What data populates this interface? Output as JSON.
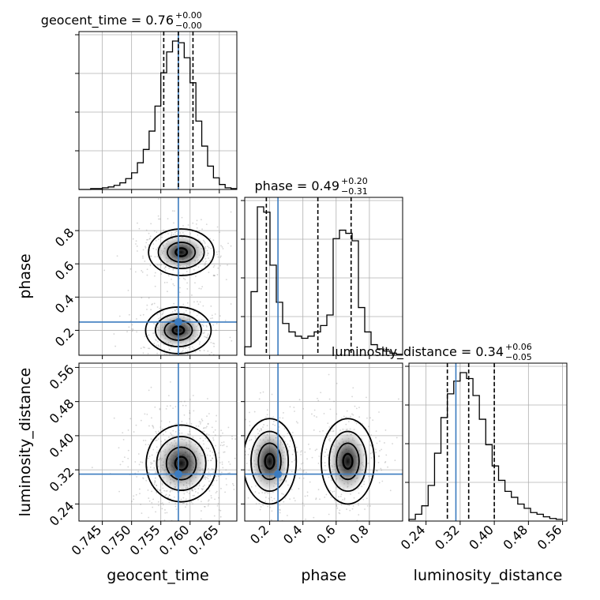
{
  "chart_data": {
    "type": "corner",
    "parameters": [
      "geocent_time",
      "phase",
      "luminosity_distance"
    ],
    "injection": {
      "geocent_time": 0.758,
      "phase": 0.25,
      "luminosity_distance": 0.31
    },
    "truth_color": "#3b7bbf",
    "quantile_color": "#000000",
    "grid": true,
    "axes": {
      "geocent_time": {
        "xlim": [
          0.741,
          0.768
        ],
        "ticks": [
          0.745,
          0.75,
          0.755,
          0.76,
          0.765
        ],
        "tick_labels": [
          "0.745",
          "0.750",
          "0.755",
          "0.760",
          "0.765"
        ]
      },
      "phase": {
        "xlim": [
          0.05,
          1.0
        ],
        "ticks": [
          0.2,
          0.4,
          0.6,
          0.8
        ],
        "tick_labels": [
          "0.2",
          "0.4",
          "0.6",
          "0.8"
        ]
      },
      "luminosity_distance": {
        "xlim": [
          0.2,
          0.57
        ],
        "ticks": [
          0.24,
          0.32,
          0.4,
          0.48,
          0.56
        ],
        "tick_labels": [
          "0.24",
          "0.32",
          "0.40",
          "0.48",
          "0.56"
        ]
      }
    },
    "marginals": [
      {
        "parameter": "geocent_time",
        "title_main": "geocent_time = 0.76",
        "title_sup": "+0.00",
        "title_sub": "−0.00",
        "median": 0.758,
        "quantiles": [
          0.7555,
          0.758,
          0.7605
        ],
        "bin_edges": [
          0.741,
          0.742,
          0.743,
          0.744,
          0.745,
          0.746,
          0.747,
          0.748,
          0.749,
          0.75,
          0.751,
          0.752,
          0.753,
          0.754,
          0.755,
          0.756,
          0.757,
          0.758,
          0.759,
          0.76,
          0.761,
          0.762,
          0.763,
          0.764,
          0.765,
          0.766,
          0.767,
          0.768
        ],
        "counts": [
          0,
          0,
          1,
          1,
          2,
          3,
          5,
          8,
          13,
          20,
          32,
          48,
          70,
          100,
          140,
          165,
          178,
          176,
          158,
          128,
          82,
          52,
          28,
          14,
          6,
          2,
          1
        ]
      },
      {
        "parameter": "phase",
        "title_main": "phase = 0.49",
        "title_sup": "+0.20",
        "title_sub": "−0.31",
        "median": 0.49,
        "quantiles": [
          0.18,
          0.49,
          0.69
        ],
        "bin_edges": [
          0.05,
          0.088,
          0.126,
          0.164,
          0.202,
          0.24,
          0.278,
          0.316,
          0.354,
          0.392,
          0.43,
          0.468,
          0.506,
          0.544,
          0.582,
          0.62,
          0.658,
          0.696,
          0.734,
          0.772,
          0.81,
          0.848,
          0.886,
          0.924,
          0.962,
          1.0
        ],
        "counts": [
          8,
          60,
          140,
          135,
          85,
          50,
          30,
          22,
          18,
          16,
          18,
          22,
          28,
          38,
          110,
          118,
          115,
          108,
          45,
          22,
          10,
          6,
          4,
          2,
          1
        ]
      },
      {
        "parameter": "luminosity_distance",
        "title_main": "luminosity_distance = 0.34",
        "title_sup": "+0.06",
        "title_sub": "−0.05",
        "median": 0.34,
        "quantiles": [
          0.29,
          0.34,
          0.4
        ],
        "bin_edges": [
          0.2,
          0.215,
          0.23,
          0.245,
          0.26,
          0.275,
          0.29,
          0.305,
          0.32,
          0.335,
          0.35,
          0.365,
          0.38,
          0.395,
          0.41,
          0.425,
          0.44,
          0.455,
          0.47,
          0.485,
          0.5,
          0.515,
          0.53,
          0.545,
          0.56
        ],
        "counts": [
          2,
          8,
          18,
          42,
          80,
          122,
          150,
          165,
          175,
          168,
          148,
          120,
          90,
          65,
          48,
          35,
          28,
          20,
          15,
          10,
          8,
          5,
          3,
          2
        ]
      }
    ],
    "joint": [
      {
        "x": "geocent_time",
        "y": "phase",
        "modes": [
          {
            "x": 0.7585,
            "y": 0.67,
            "sx": 0.0028,
            "sy": 0.07,
            "w": 0.5
          },
          {
            "x": 0.758,
            "y": 0.2,
            "sx": 0.0028,
            "sy": 0.07,
            "w": 0.5
          }
        ]
      },
      {
        "x": "geocent_time",
        "y": "luminosity_distance",
        "modes": [
          {
            "x": 0.7585,
            "y": 0.335,
            "sx": 0.003,
            "sy": 0.045,
            "w": 1.0
          }
        ]
      },
      {
        "x": "phase",
        "y": "luminosity_distance",
        "modes": [
          {
            "x": 0.2,
            "y": 0.34,
            "sx": 0.08,
            "sy": 0.05,
            "w": 0.5
          },
          {
            "x": 0.67,
            "y": 0.34,
            "sx": 0.08,
            "sy": 0.05,
            "w": 0.5
          }
        ]
      }
    ]
  }
}
